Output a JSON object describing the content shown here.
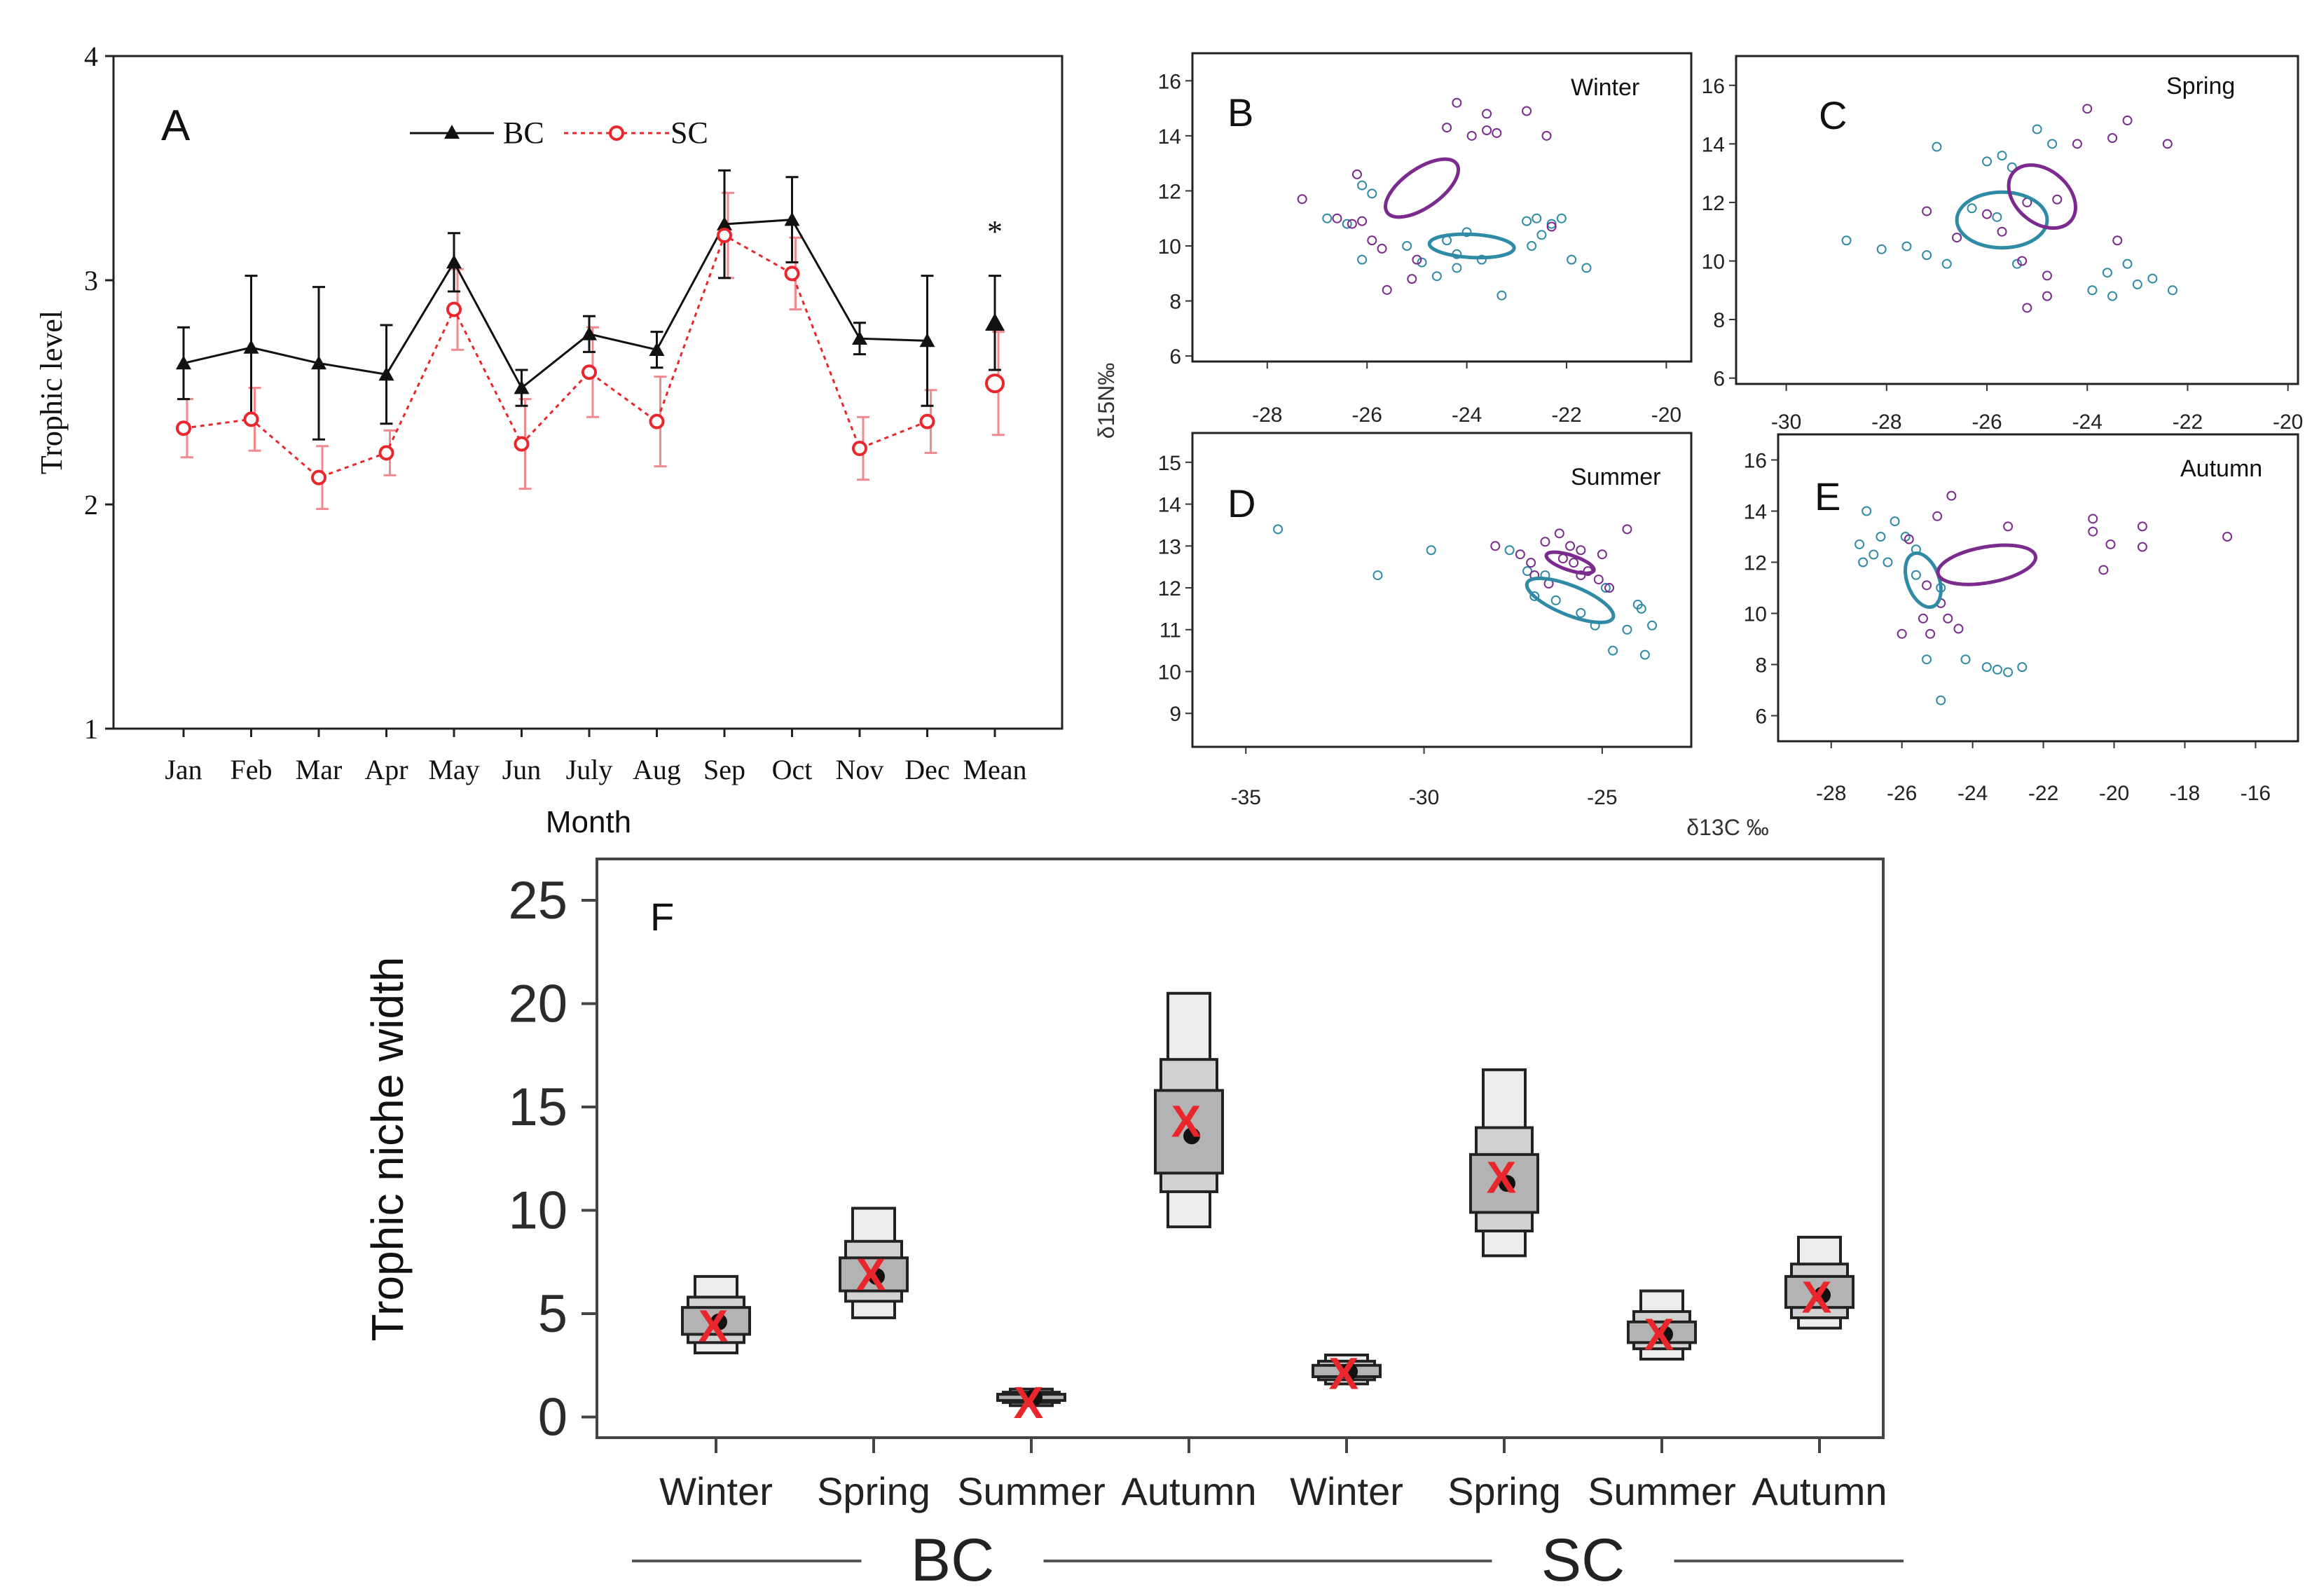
{
  "colors": {
    "bc": "#111111",
    "sc": "#e8262b",
    "sc_error": "#f08a8c",
    "purple": "#7b2b8e",
    "teal": "#2f8aa5",
    "box_dark": "#b3b3b3",
    "box_mid": "#d2d2d2",
    "box_light": "#ededed",
    "x_mark": "#e8262b",
    "tick_orange": "#2b2b2b"
  },
  "chart_data": [
    {
      "panel": "A",
      "type": "line",
      "xlabel": "Month",
      "ylabel": "Trophic level",
      "ylim": [
        1,
        4
      ],
      "yticks": [
        "1",
        "2",
        "3",
        "4"
      ],
      "categories": [
        "Jan",
        "Feb",
        "Mar",
        "Apr",
        "May",
        "Jun",
        "July",
        "Aug",
        "Sep",
        "Oct",
        "Nov",
        "Dec",
        "Mean"
      ],
      "legend": [
        "BC",
        "SC"
      ],
      "annotation": "*",
      "series": [
        {
          "name": "BC",
          "values": [
            2.63,
            2.7,
            2.63,
            2.58,
            3.08,
            2.52,
            2.76,
            2.69,
            3.25,
            3.27,
            2.74,
            2.73,
            2.81
          ],
          "errors": [
            0.16,
            0.32,
            0.34,
            0.22,
            0.13,
            0.08,
            0.08,
            0.08,
            0.24,
            0.19,
            0.07,
            0.29,
            0.21
          ]
        },
        {
          "name": "SC",
          "values": [
            2.34,
            2.38,
            2.12,
            2.23,
            2.87,
            2.27,
            2.59,
            2.37,
            3.2,
            3.03,
            2.25,
            2.37,
            2.54
          ],
          "errors": [
            0.13,
            0.14,
            0.14,
            0.1,
            0.18,
            0.2,
            0.2,
            0.2,
            0.19,
            0.16,
            0.14,
            0.14,
            0.23
          ]
        }
      ]
    },
    {
      "panel": "B",
      "type": "scatter",
      "season": "Winter",
      "ylabel": "δ15N‰",
      "xlabel": "δ13C ‰",
      "xlim": [
        -29.5,
        -19.5
      ],
      "ylim": [
        5.8,
        17
      ],
      "xticks": [
        "-28",
        "-26",
        "-24",
        "-22",
        "-20"
      ],
      "yticks": [
        "6",
        "8",
        "10",
        "12",
        "14",
        "16"
      ],
      "sc_points": [
        [
          -24.2,
          15.2
        ],
        [
          -23.6,
          14.8
        ],
        [
          -22.8,
          14.9
        ],
        [
          -24.4,
          14.3
        ],
        [
          -23.9,
          14.0
        ],
        [
          -23.4,
          14.1
        ],
        [
          -23.6,
          14.2
        ],
        [
          -22.4,
          14.0
        ],
        [
          -26.2,
          12.6
        ],
        [
          -27.3,
          11.7
        ],
        [
          -26.6,
          11.0
        ],
        [
          -26.1,
          10.9
        ],
        [
          -25.9,
          10.2
        ],
        [
          -25.7,
          9.9
        ],
        [
          -25.0,
          9.5
        ],
        [
          -25.6,
          8.4
        ],
        [
          -25.1,
          8.8
        ],
        [
          -22.3,
          10.7
        ],
        [
          -26.3,
          10.8
        ]
      ],
      "bc_points": [
        [
          -26.1,
          12.2
        ],
        [
          -26.8,
          11.0
        ],
        [
          -26.4,
          10.8
        ],
        [
          -25.9,
          11.9
        ],
        [
          -26.1,
          9.5
        ],
        [
          -25.2,
          10.0
        ],
        [
          -24.4,
          10.2
        ],
        [
          -24.0,
          10.5
        ],
        [
          -24.2,
          9.7
        ],
        [
          -23.7,
          9.5
        ],
        [
          -24.6,
          8.9
        ],
        [
          -24.2,
          9.2
        ],
        [
          -23.3,
          8.2
        ],
        [
          -22.8,
          10.9
        ],
        [
          -22.6,
          11.0
        ],
        [
          -22.3,
          10.8
        ],
        [
          -22.1,
          11.0
        ],
        [
          -22.7,
          10.0
        ],
        [
          -22.5,
          10.4
        ],
        [
          -21.9,
          9.5
        ],
        [
          -21.6,
          9.2
        ],
        [
          -24.9,
          9.4
        ]
      ],
      "sc_ellipse": {
        "cx": -24.9,
        "cy": 12.1,
        "rx": 0.85,
        "ry": 0.7,
        "angle": -35
      },
      "bc_ellipse": {
        "cx": -23.9,
        "cy": 10.0,
        "rx": 0.85,
        "ry": 0.42,
        "angle": 3
      }
    },
    {
      "panel": "C",
      "type": "scatter",
      "season": "Spring",
      "xlim": [
        -31,
        -19.8
      ],
      "ylim": [
        5.8,
        17
      ],
      "xticks": [
        "-30",
        "-28",
        "-26",
        "-24",
        "-22",
        "-20"
      ],
      "yticks": [
        "6",
        "8",
        "10",
        "12",
        "14",
        "16"
      ],
      "sc_points": [
        [
          -24.0,
          15.2
        ],
        [
          -23.2,
          14.8
        ],
        [
          -23.5,
          14.2
        ],
        [
          -24.2,
          14.0
        ],
        [
          -22.4,
          14.0
        ],
        [
          -25.2,
          12.0
        ],
        [
          -25.7,
          11.0
        ],
        [
          -24.6,
          12.1
        ],
        [
          -27.2,
          11.7
        ],
        [
          -26.6,
          10.8
        ],
        [
          -25.3,
          10.0
        ],
        [
          -24.8,
          9.5
        ],
        [
          -25.2,
          8.4
        ],
        [
          -24.8,
          8.8
        ],
        [
          -23.4,
          10.7
        ],
        [
          -26.0,
          11.6
        ]
      ],
      "bc_points": [
        [
          -27.0,
          13.9
        ],
        [
          -25.7,
          13.6
        ],
        [
          -26.0,
          13.4
        ],
        [
          -25.5,
          13.2
        ],
        [
          -25.0,
          14.5
        ],
        [
          -24.7,
          14.0
        ],
        [
          -28.8,
          10.7
        ],
        [
          -28.1,
          10.4
        ],
        [
          -27.6,
          10.5
        ],
        [
          -27.2,
          10.2
        ],
        [
          -26.8,
          9.9
        ],
        [
          -25.4,
          9.9
        ],
        [
          -26.3,
          11.8
        ],
        [
          -25.8,
          11.5
        ],
        [
          -23.2,
          9.9
        ],
        [
          -23.6,
          9.6
        ],
        [
          -23.0,
          9.2
        ],
        [
          -22.3,
          9.0
        ],
        [
          -22.7,
          9.4
        ],
        [
          -23.9,
          9.0
        ],
        [
          -23.5,
          8.8
        ]
      ],
      "sc_ellipse": {
        "cx": -24.9,
        "cy": 12.2,
        "rx": 0.75,
        "ry": 0.9,
        "angle": 40
      },
      "bc_ellipse": {
        "cx": -25.7,
        "cy": 11.4,
        "rx": 0.9,
        "ry": 0.95,
        "angle": 0
      }
    },
    {
      "panel": "D",
      "type": "scatter",
      "season": "Summer",
      "xlim": [
        -36.5,
        -22.5
      ],
      "ylim": [
        8.2,
        15.7
      ],
      "xticks": [
        "-35",
        "-30",
        "-25"
      ],
      "yticks": [
        "9",
        "10",
        "11",
        "12",
        "13",
        "14",
        "15"
      ],
      "sc_points": [
        [
          -28.0,
          13.0
        ],
        [
          -27.3,
          12.8
        ],
        [
          -27.0,
          12.6
        ],
        [
          -26.6,
          13.1
        ],
        [
          -26.2,
          13.3
        ],
        [
          -25.9,
          13.0
        ],
        [
          -25.6,
          12.9
        ],
        [
          -25.8,
          12.6
        ],
        [
          -25.4,
          12.4
        ],
        [
          -25.1,
          12.2
        ],
        [
          -24.8,
          12.0
        ],
        [
          -26.9,
          12.3
        ],
        [
          -26.5,
          12.1
        ],
        [
          -25.0,
          12.8
        ],
        [
          -24.3,
          13.4
        ],
        [
          -26.1,
          12.7
        ],
        [
          -25.6,
          12.3
        ]
      ],
      "bc_points": [
        [
          -34.1,
          13.4
        ],
        [
          -31.3,
          12.3
        ],
        [
          -29.8,
          12.9
        ],
        [
          -27.6,
          12.9
        ],
        [
          -27.1,
          12.4
        ],
        [
          -26.6,
          12.3
        ],
        [
          -26.3,
          11.7
        ],
        [
          -25.6,
          11.4
        ],
        [
          -25.2,
          11.1
        ],
        [
          -24.7,
          10.5
        ],
        [
          -24.3,
          11.0
        ],
        [
          -23.6,
          11.1
        ],
        [
          -23.9,
          11.5
        ],
        [
          -23.8,
          10.4
        ],
        [
          -24.9,
          12.0
        ],
        [
          -24.0,
          11.6
        ],
        [
          -26.9,
          11.8
        ]
      ],
      "sc_ellipse": {
        "cx": -25.9,
        "cy": 12.6,
        "rx": 0.7,
        "ry": 0.18,
        "angle": 18
      },
      "bc_ellipse": {
        "cx": -25.9,
        "cy": 11.7,
        "rx": 1.3,
        "ry": 0.35,
        "angle": 22
      }
    },
    {
      "panel": "E",
      "type": "scatter",
      "season": "Autumn",
      "xlim": [
        -29.5,
        -14.8
      ],
      "ylim": [
        5.0,
        17
      ],
      "xticks": [
        "-28",
        "-26",
        "-24",
        "-22",
        "-20",
        "-18",
        "-16"
      ],
      "yticks": [
        "6",
        "8",
        "10",
        "12",
        "14",
        "16"
      ],
      "sc_points": [
        [
          -24.6,
          14.6
        ],
        [
          -25.0,
          13.8
        ],
        [
          -23.0,
          13.4
        ],
        [
          -20.6,
          13.7
        ],
        [
          -20.6,
          13.2
        ],
        [
          -20.1,
          12.7
        ],
        [
          -19.2,
          13.4
        ],
        [
          -19.2,
          12.6
        ],
        [
          -20.3,
          11.7
        ],
        [
          -16.8,
          13.0
        ],
        [
          -25.3,
          11.1
        ],
        [
          -24.9,
          10.4
        ],
        [
          -25.4,
          9.8
        ],
        [
          -25.2,
          9.2
        ],
        [
          -24.4,
          9.4
        ],
        [
          -26.0,
          9.2
        ],
        [
          -24.7,
          9.8
        ],
        [
          -25.8,
          12.9
        ]
      ],
      "bc_points": [
        [
          -27.0,
          14.0
        ],
        [
          -26.2,
          13.6
        ],
        [
          -26.6,
          13.0
        ],
        [
          -27.2,
          12.7
        ],
        [
          -26.8,
          12.3
        ],
        [
          -26.4,
          12.0
        ],
        [
          -25.9,
          13.0
        ],
        [
          -25.6,
          12.5
        ],
        [
          -27.1,
          12.0
        ],
        [
          -25.3,
          8.2
        ],
        [
          -24.2,
          8.2
        ],
        [
          -23.6,
          7.9
        ],
        [
          -23.3,
          7.8
        ],
        [
          -22.6,
          7.9
        ],
        [
          -23.0,
          7.7
        ],
        [
          -24.9,
          6.6
        ],
        [
          -25.6,
          11.5
        ],
        [
          -24.9,
          11.0
        ]
      ],
      "sc_ellipse": {
        "cx": -23.6,
        "cy": 11.9,
        "rx": 1.4,
        "ry": 0.7,
        "angle": -10
      },
      "bc_ellipse": {
        "cx": -25.4,
        "cy": 11.3,
        "rx": 0.45,
        "ry": 1.1,
        "angle": -20
      }
    },
    {
      "panel": "F",
      "type": "box",
      "ylabel": "Trophic niche width",
      "ylim": [
        -1,
        27
      ],
      "yticks": [
        "0",
        "5",
        "10",
        "15",
        "20",
        "25"
      ],
      "categories": [
        "Winter",
        "Spring",
        "Summer",
        "Autumn",
        "Winter",
        "Spring",
        "Summer",
        "Autumn"
      ],
      "groups": [
        {
          "label": "BC",
          "members": [
            0,
            1,
            2,
            3
          ]
        },
        {
          "label": "SC",
          "members": [
            4,
            5,
            6,
            7
          ]
        }
      ],
      "boxes": [
        {
          "mode": 4.6,
          "x_mark": 4.4,
          "r95": [
            3.1,
            6.8
          ],
          "r75": [
            3.6,
            5.8
          ],
          "r50": [
            4.0,
            5.3
          ]
        },
        {
          "mode": 6.8,
          "x_mark": 6.9,
          "r95": [
            4.8,
            10.1
          ],
          "r75": [
            5.6,
            8.5
          ],
          "r50": [
            6.1,
            7.7
          ]
        },
        {
          "mode": 0.95,
          "x_mark": 0.7,
          "r95": [
            0.55,
            1.35
          ],
          "r75": [
            0.7,
            1.2
          ],
          "r50": [
            0.8,
            1.1
          ]
        },
        {
          "mode": 13.6,
          "x_mark": 14.3,
          "r95": [
            9.2,
            20.5
          ],
          "r75": [
            10.9,
            17.3
          ],
          "r50": [
            11.8,
            15.8
          ]
        },
        {
          "mode": 2.2,
          "x_mark": 2.1,
          "r95": [
            1.6,
            3.0
          ],
          "r75": [
            1.8,
            2.7
          ],
          "r50": [
            1.95,
            2.5
          ]
        },
        {
          "mode": 11.3,
          "x_mark": 11.6,
          "r95": [
            7.8,
            16.8
          ],
          "r75": [
            9.0,
            14.0
          ],
          "r50": [
            9.9,
            12.7
          ]
        },
        {
          "mode": 4.0,
          "x_mark": 4.0,
          "r95": [
            2.8,
            6.1
          ],
          "r75": [
            3.3,
            5.1
          ],
          "r50": [
            3.6,
            4.6
          ]
        },
        {
          "mode": 5.9,
          "x_mark": 5.8,
          "r95": [
            4.3,
            8.7
          ],
          "r75": [
            4.8,
            7.4
          ],
          "r50": [
            5.3,
            6.8
          ]
        }
      ],
      "panel_label": "F"
    }
  ],
  "labels": {
    "A": "A",
    "B": "B",
    "C": "C",
    "D": "D",
    "E": "E",
    "winter": "Winter",
    "spring": "Spring",
    "summer": "Summer",
    "autumn": "Autumn",
    "d15n": "δ15N‰",
    "d13c": "δ13C ‰",
    "asterisk": "*"
  }
}
